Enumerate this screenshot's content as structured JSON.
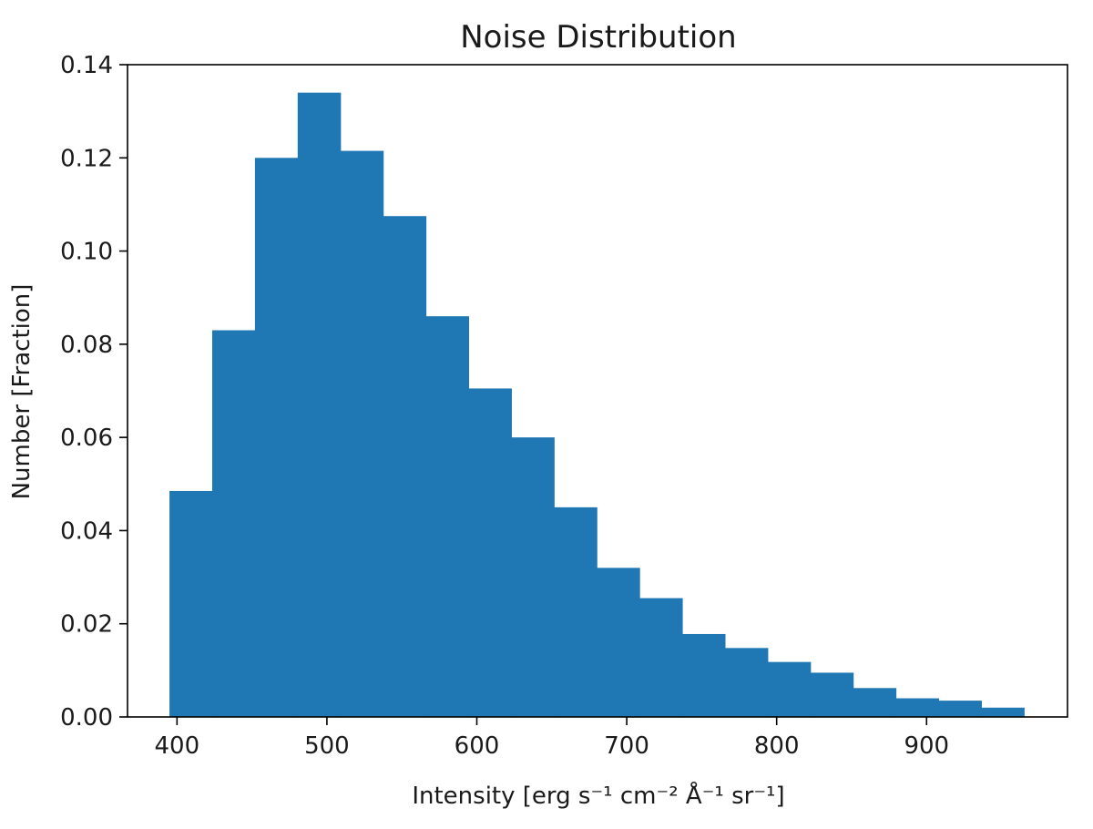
{
  "chart_data": {
    "type": "bar",
    "subtype": "histogram",
    "title": "Noise Distribution",
    "xlabel": "Intensity [erg s⁻¹ cm⁻² Å⁻¹ sr⁻¹]",
    "ylabel": "Number [Fraction]",
    "xlim": [
      367,
      994
    ],
    "ylim": [
      0,
      0.14
    ],
    "xticks": [
      400,
      500,
      600,
      700,
      800,
      900
    ],
    "xtick_labels": [
      "400",
      "500",
      "600",
      "700",
      "800",
      "900"
    ],
    "yticks": [
      0,
      0.02,
      0.04,
      0.06,
      0.08,
      0.1,
      0.12,
      0.14
    ],
    "ytick_labels": [
      "0.00",
      "0.02",
      "0.04",
      "0.06",
      "0.08",
      "0.10",
      "0.12",
      "0.14"
    ],
    "grid": false,
    "bar_color": "#1f77b4",
    "bin_edges": [
      395,
      423.5,
      452,
      480.5,
      509,
      537.5,
      566,
      594.5,
      623,
      651.5,
      680,
      708.5,
      737,
      765.5,
      794,
      822.5,
      851,
      879.5,
      908,
      936.5,
      965
    ],
    "values": [
      0.0485,
      0.083,
      0.12,
      0.134,
      0.1215,
      0.1075,
      0.086,
      0.0705,
      0.06,
      0.045,
      0.032,
      0.0255,
      0.0178,
      0.0148,
      0.0118,
      0.0095,
      0.0062,
      0.004,
      0.0035,
      0.002
    ]
  }
}
